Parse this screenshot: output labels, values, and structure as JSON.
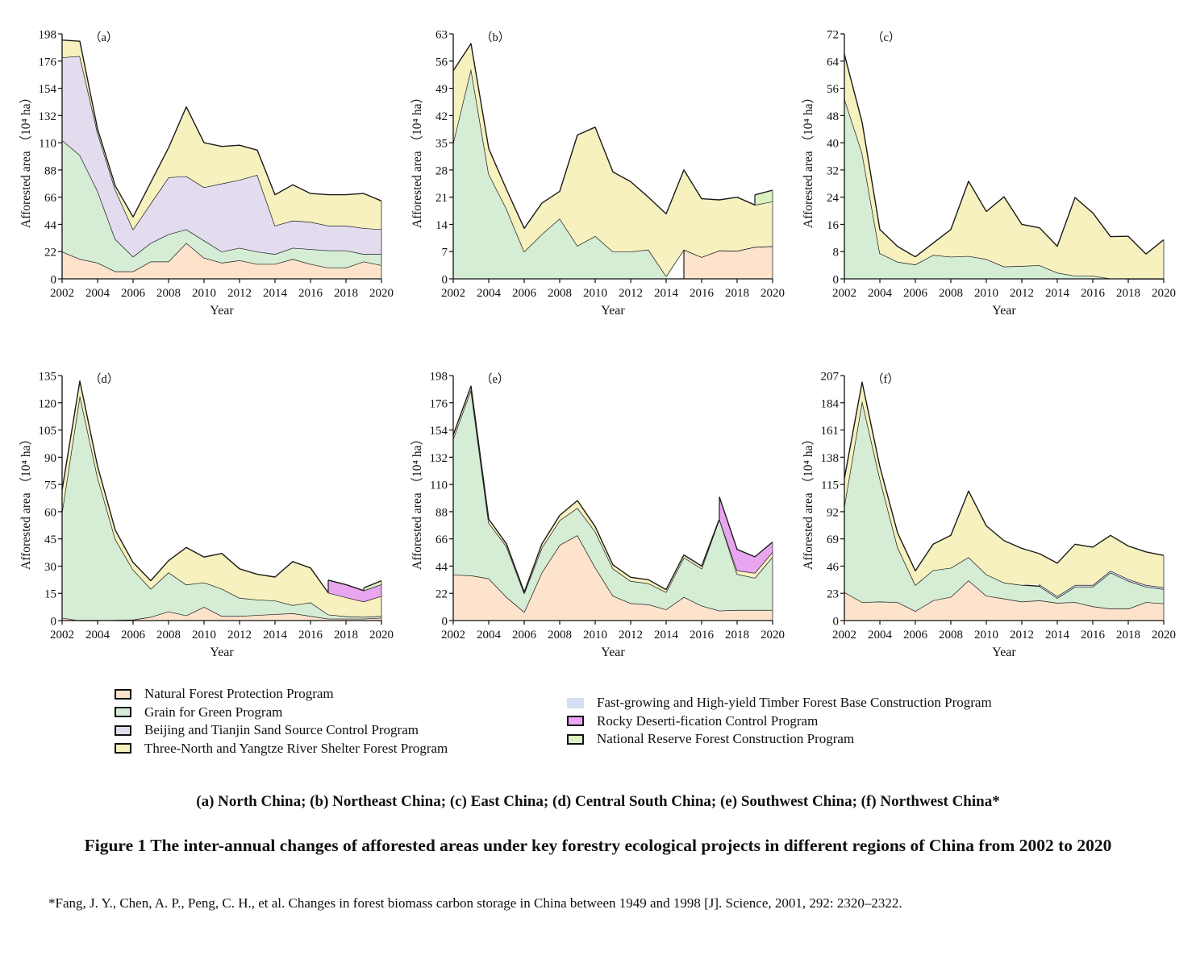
{
  "legend": {
    "left": [
      {
        "key": "NF",
        "label": "Natural Forest Protection Program"
      },
      {
        "key": "GG",
        "label": "Grain for Green Program"
      },
      {
        "key": "BT",
        "label": "Beijing and Tianjin Sand Source Control Program"
      },
      {
        "key": "TN",
        "label": "Three-North and Yangtze River Shelter Forest Program"
      }
    ],
    "right": [
      {
        "key": "FT",
        "label": "Fast-growing and High-yield Timber Forest Base Construction Program"
      },
      {
        "key": "RD",
        "label": "Rocky Deserti-fication Control Program"
      },
      {
        "key": "NR",
        "label": "National Reserve Forest Construction Program"
      }
    ]
  },
  "colors": {
    "NF": "#fde3cc",
    "GG": "#d5ecd5",
    "BT": "#e3dcef",
    "TN": "#f7f1bf",
    "FT": "#d6e0f5",
    "RD": "#e9a6f0",
    "NR": "#dcf2c2",
    "outline": "#1a1a1a"
  },
  "captions": {
    "sub": "(a) North China; (b) Northeast China; (c) East China; (d) Central South China; (e) Southwest China; (f) Northwest China*",
    "figure": "Figure 1  The inter-annual changes of afforested areas under key forestry ecological projects in different regions of China from 2002 to 2020",
    "reference": "*Fang, J. Y., Chen, A. P., Peng, C. H., et al. Changes in forest biomass carbon storage in China between 1949 and 1998 [J]. Science, 2001, 292: 2320–2322."
  },
  "chart_data": [
    {
      "id": "a",
      "type": "area",
      "stacked": true,
      "panel_label": "（a）",
      "title": "North China",
      "xlabel": "Year",
      "ylabel": "Afforested area （10⁴ ha）",
      "x": [
        2002,
        2003,
        2004,
        2005,
        2006,
        2007,
        2008,
        2009,
        2010,
        2011,
        2012,
        2013,
        2014,
        2015,
        2016,
        2017,
        2018,
        2019,
        2020
      ],
      "xticks": [
        2002,
        2004,
        2006,
        2008,
        2010,
        2012,
        2014,
        2016,
        2018,
        2020
      ],
      "ylim": [
        0,
        198
      ],
      "yticks": [
        0,
        22,
        44,
        66,
        88,
        110,
        132,
        154,
        176,
        198
      ],
      "series": [
        {
          "key": "NF",
          "values": [
            22,
            16,
            13,
            6,
            6,
            14,
            14,
            29,
            17,
            13,
            15,
            12,
            12,
            16,
            12,
            9,
            9,
            14,
            11
          ]
        },
        {
          "key": "GG",
          "values": [
            90,
            84,
            58,
            26,
            12,
            15,
            22,
            11,
            14,
            9,
            10,
            10,
            8,
            9,
            12,
            14,
            14,
            6,
            9
          ]
        },
        {
          "key": "BT",
          "values": [
            67,
            80,
            47,
            40,
            22,
            32,
            46,
            43,
            43,
            55,
            55,
            62,
            23,
            22,
            22,
            20,
            20,
            21,
            20
          ]
        },
        {
          "key": "TN",
          "values": [
            14,
            12,
            3,
            3,
            10,
            17,
            24,
            56,
            36,
            30,
            28,
            20,
            25,
            29,
            23,
            25,
            25,
            28,
            23
          ]
        }
      ]
    },
    {
      "id": "b",
      "type": "area",
      "stacked": true,
      "panel_label": "（b）",
      "title": "Northeast China",
      "xlabel": "Year",
      "ylabel": "Afforested area （10⁴ ha）",
      "x": [
        2002,
        2003,
        2004,
        2005,
        2006,
        2007,
        2008,
        2009,
        2010,
        2011,
        2012,
        2013,
        2014,
        2015,
        2016,
        2017,
        2018,
        2019,
        2020
      ],
      "xticks": [
        2002,
        2004,
        2006,
        2008,
        2010,
        2012,
        2014,
        2016,
        2018,
        2020
      ],
      "ylim": [
        0,
        63
      ],
      "yticks": [
        0,
        7,
        14,
        21,
        28,
        35,
        42,
        49,
        56,
        63
      ],
      "series": [
        {
          "key": "NF",
          "values": [
            null,
            null,
            null,
            null,
            null,
            null,
            null,
            null,
            null,
            null,
            null,
            null,
            null,
            7.5,
            5.6,
            7.3,
            7.2,
            8.2,
            8.4
          ]
        },
        {
          "key": "GG",
          "values": [
            35,
            54,
            27,
            18,
            7,
            11.5,
            15.5,
            8.5,
            11,
            7,
            7,
            7.5,
            0.7,
            0,
            0,
            0,
            0,
            0,
            0
          ]
        },
        {
          "key": "TN",
          "values": [
            18.5,
            6.5,
            6.5,
            5,
            6,
            8,
            7,
            28.5,
            28,
            20.5,
            18,
            13.5,
            16,
            20.5,
            15,
            13,
            13.8,
            10.8,
            11.5
          ]
        },
        {
          "key": "NR",
          "values": [
            null,
            null,
            null,
            null,
            null,
            null,
            null,
            null,
            null,
            null,
            null,
            null,
            null,
            null,
            null,
            null,
            null,
            2.6,
            2.9
          ]
        }
      ]
    },
    {
      "id": "c",
      "type": "area",
      "stacked": true,
      "panel_label": "（c）",
      "title": "East China",
      "xlabel": "Year",
      "ylabel": "Afforested area （10⁴ ha）",
      "x": [
        2002,
        2003,
        2004,
        2005,
        2006,
        2007,
        2008,
        2009,
        2010,
        2011,
        2012,
        2013,
        2014,
        2015,
        2016,
        2017,
        2018,
        2019,
        2020
      ],
      "xticks": [
        2002,
        2004,
        2006,
        2008,
        2010,
        2012,
        2014,
        2016,
        2018,
        2020
      ],
      "ylim": [
        0,
        72
      ],
      "yticks": [
        0,
        8,
        16,
        24,
        32,
        40,
        48,
        56,
        64,
        72
      ],
      "series": [
        {
          "key": "GG",
          "values": [
            53,
            37,
            7.5,
            5,
            4.2,
            7,
            6.5,
            6.7,
            5.8,
            3.6,
            3.8,
            4,
            1.8,
            0.9,
            0.9,
            0.1,
            0,
            0,
            0
          ]
        },
        {
          "key": "TN",
          "values": [
            13,
            9,
            7,
            4.5,
            2.3,
            3.5,
            8,
            22,
            14,
            20.5,
            12.2,
            11,
            7.8,
            23,
            18.5,
            12.3,
            12.5,
            7.3,
            11.5
          ]
        }
      ]
    },
    {
      "id": "d",
      "type": "area",
      "stacked": true,
      "panel_label": "（d）",
      "title": "Central South China",
      "xlabel": "Year",
      "ylabel": "Afforested area （10⁴ ha）",
      "x": [
        2002,
        2003,
        2004,
        2005,
        2006,
        2007,
        2008,
        2009,
        2010,
        2011,
        2012,
        2013,
        2014,
        2015,
        2016,
        2017,
        2018,
        2019,
        2020
      ],
      "xticks": [
        2002,
        2004,
        2006,
        2008,
        2010,
        2012,
        2014,
        2016,
        2018,
        2020
      ],
      "ylim": [
        0,
        135
      ],
      "yticks": [
        0,
        15,
        30,
        45,
        60,
        75,
        90,
        105,
        120,
        135
      ],
      "series": [
        {
          "key": "NF",
          "values": [
            1.5,
            0,
            0,
            0.3,
            0.5,
            2,
            5,
            2.8,
            7.5,
            2.5,
            2.5,
            3,
            3.5,
            4,
            2.5,
            1,
            1,
            1,
            1.5
          ]
        },
        {
          "key": "GG",
          "values": [
            58.5,
            124,
            79,
            44.5,
            27.5,
            15.5,
            21.5,
            17,
            13.5,
            15,
            10,
            8.5,
            7.5,
            4.5,
            7.5,
            2.3,
            1.3,
            1,
            1
          ]
        },
        {
          "key": "TN",
          "values": [
            12,
            8,
            6,
            5,
            4,
            4.5,
            6.5,
            20.5,
            14,
            19.5,
            16,
            14,
            13,
            24,
            19,
            12,
            10.5,
            8.5,
            11
          ]
        },
        {
          "key": "RD",
          "values": [
            null,
            null,
            null,
            null,
            null,
            null,
            null,
            null,
            null,
            null,
            null,
            null,
            null,
            null,
            null,
            7,
            7,
            6,
            6.5
          ]
        },
        {
          "key": "NR",
          "values": [
            null,
            null,
            null,
            null,
            null,
            null,
            null,
            null,
            null,
            null,
            null,
            null,
            null,
            null,
            null,
            null,
            null,
            1.5,
            2
          ]
        }
      ]
    },
    {
      "id": "e",
      "type": "area",
      "stacked": true,
      "panel_label": "（e）",
      "title": "Southwest China",
      "xlabel": "Year",
      "ylabel": "Afforested area （10⁴ ha）",
      "x": [
        2002,
        2003,
        2004,
        2005,
        2006,
        2007,
        2008,
        2009,
        2010,
        2011,
        2012,
        2013,
        2014,
        2015,
        2016,
        2017,
        2018,
        2019,
        2020
      ],
      "xticks": [
        2002,
        2004,
        2006,
        2008,
        2010,
        2012,
        2014,
        2016,
        2018,
        2020
      ],
      "ylim": [
        0,
        198
      ],
      "yticks": [
        0,
        22,
        44,
        66,
        88,
        110,
        132,
        154,
        176,
        198
      ],
      "series": [
        {
          "key": "NF",
          "values": [
            37,
            36.5,
            34,
            19,
            7,
            39,
            61,
            69,
            43,
            20,
            14,
            13,
            9,
            19,
            12,
            8,
            8.5,
            8.5,
            8.5
          ]
        },
        {
          "key": "GG",
          "values": [
            110,
            150,
            45,
            41,
            15,
            20,
            20,
            22,
            29,
            22,
            18,
            17,
            14,
            32,
            30,
            74,
            29,
            26,
            43
          ]
        },
        {
          "key": "TN",
          "values": [
            3,
            3,
            3,
            2,
            1,
            3,
            4,
            6,
            4,
            3,
            3,
            3,
            2,
            2,
            2,
            0,
            3,
            4,
            4
          ]
        },
        {
          "key": "RD",
          "values": [
            null,
            null,
            null,
            null,
            null,
            null,
            null,
            null,
            null,
            null,
            null,
            null,
            null,
            null,
            null,
            18,
            17,
            13,
            8
          ]
        }
      ]
    },
    {
      "id": "f",
      "type": "area",
      "stacked": true,
      "panel_label": "（f）",
      "title": "Northwest China",
      "xlabel": "Year",
      "ylabel": "Afforested area （10⁴ ha）",
      "x": [
        2002,
        2003,
        2004,
        2005,
        2006,
        2007,
        2008,
        2009,
        2010,
        2011,
        2012,
        2013,
        2014,
        2015,
        2016,
        2017,
        2018,
        2019,
        2020
      ],
      "xticks": [
        2002,
        2004,
        2006,
        2008,
        2010,
        2012,
        2014,
        2016,
        2018,
        2020
      ],
      "ylim": [
        0,
        207
      ],
      "yticks": [
        0,
        23,
        46,
        69,
        92,
        115,
        138,
        161,
        184,
        207
      ],
      "series": [
        {
          "key": "NF",
          "values": [
            24,
            15.5,
            16,
            15.5,
            8,
            17,
            20,
            34,
            21,
            18.5,
            16,
            17,
            15,
            15.5,
            12,
            10,
            10,
            15.5,
            14.5
          ]
        },
        {
          "key": "GG",
          "values": [
            73,
            170,
            104,
            46.5,
            22,
            25.5,
            24.5,
            19.5,
            18,
            13.5,
            14,
            12,
            4,
            13,
            16.5,
            30.5,
            23.5,
            13,
            12
          ]
        },
        {
          "key": "FT",
          "values": [
            null,
            null,
            null,
            null,
            null,
            null,
            null,
            null,
            null,
            null,
            null,
            1.5,
            1.5,
            1.5,
            1.5,
            1.5,
            1.5,
            1.5,
            1.5
          ]
        },
        {
          "key": "TN",
          "values": [
            23,
            16,
            10,
            12,
            12,
            22,
            27.5,
            56,
            41,
            35.5,
            31,
            26,
            28,
            34.5,
            32,
            30,
            28,
            28,
            27
          ]
        }
      ]
    }
  ]
}
